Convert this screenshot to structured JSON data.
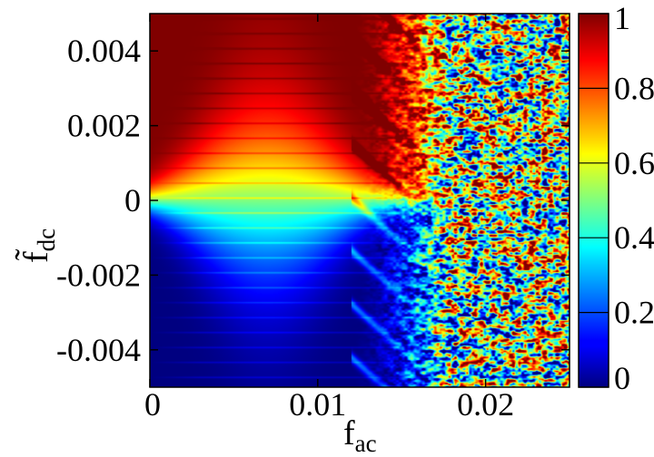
{
  "chart_data": {
    "type": "heatmap",
    "title": "",
    "xlabel": "f",
    "xlabel_subscript": "ac",
    "ylabel": "f̃",
    "ylabel_subscript": "dc",
    "xlim": [
      0,
      0.025
    ],
    "ylim": [
      -0.005,
      0.005
    ],
    "xticks": [
      {
        "value": 0,
        "label": "0"
      },
      {
        "value": 0.01,
        "label": "0.01"
      },
      {
        "value": 0.02,
        "label": "0.02"
      }
    ],
    "yticks": [
      {
        "value": 0.004,
        "label": "0.004"
      },
      {
        "value": 0.002,
        "label": "0.002"
      },
      {
        "value": 0,
        "label": "0"
      },
      {
        "value": -0.002,
        "label": "-0.002"
      },
      {
        "value": -0.004,
        "label": "-0.004"
      }
    ],
    "colorbar": {
      "range": [
        0,
        1
      ],
      "colormap": "jet",
      "ticks": [
        {
          "value": 0,
          "label": "0"
        },
        {
          "value": 0.2,
          "label": "0.2"
        },
        {
          "value": 0.4,
          "label": "0.4"
        },
        {
          "value": 0.6,
          "label": "0.6"
        },
        {
          "value": 0.8,
          "label": "0.8"
        },
        {
          "value": 1,
          "label": "1"
        }
      ]
    },
    "features": {
      "smooth_region_fac_max": 0.012,
      "chaotic_region_fac_min": 0.018,
      "central_lobe_value": 0.5,
      "central_lobe_fac_peak": 0.007
    },
    "grid": false
  }
}
